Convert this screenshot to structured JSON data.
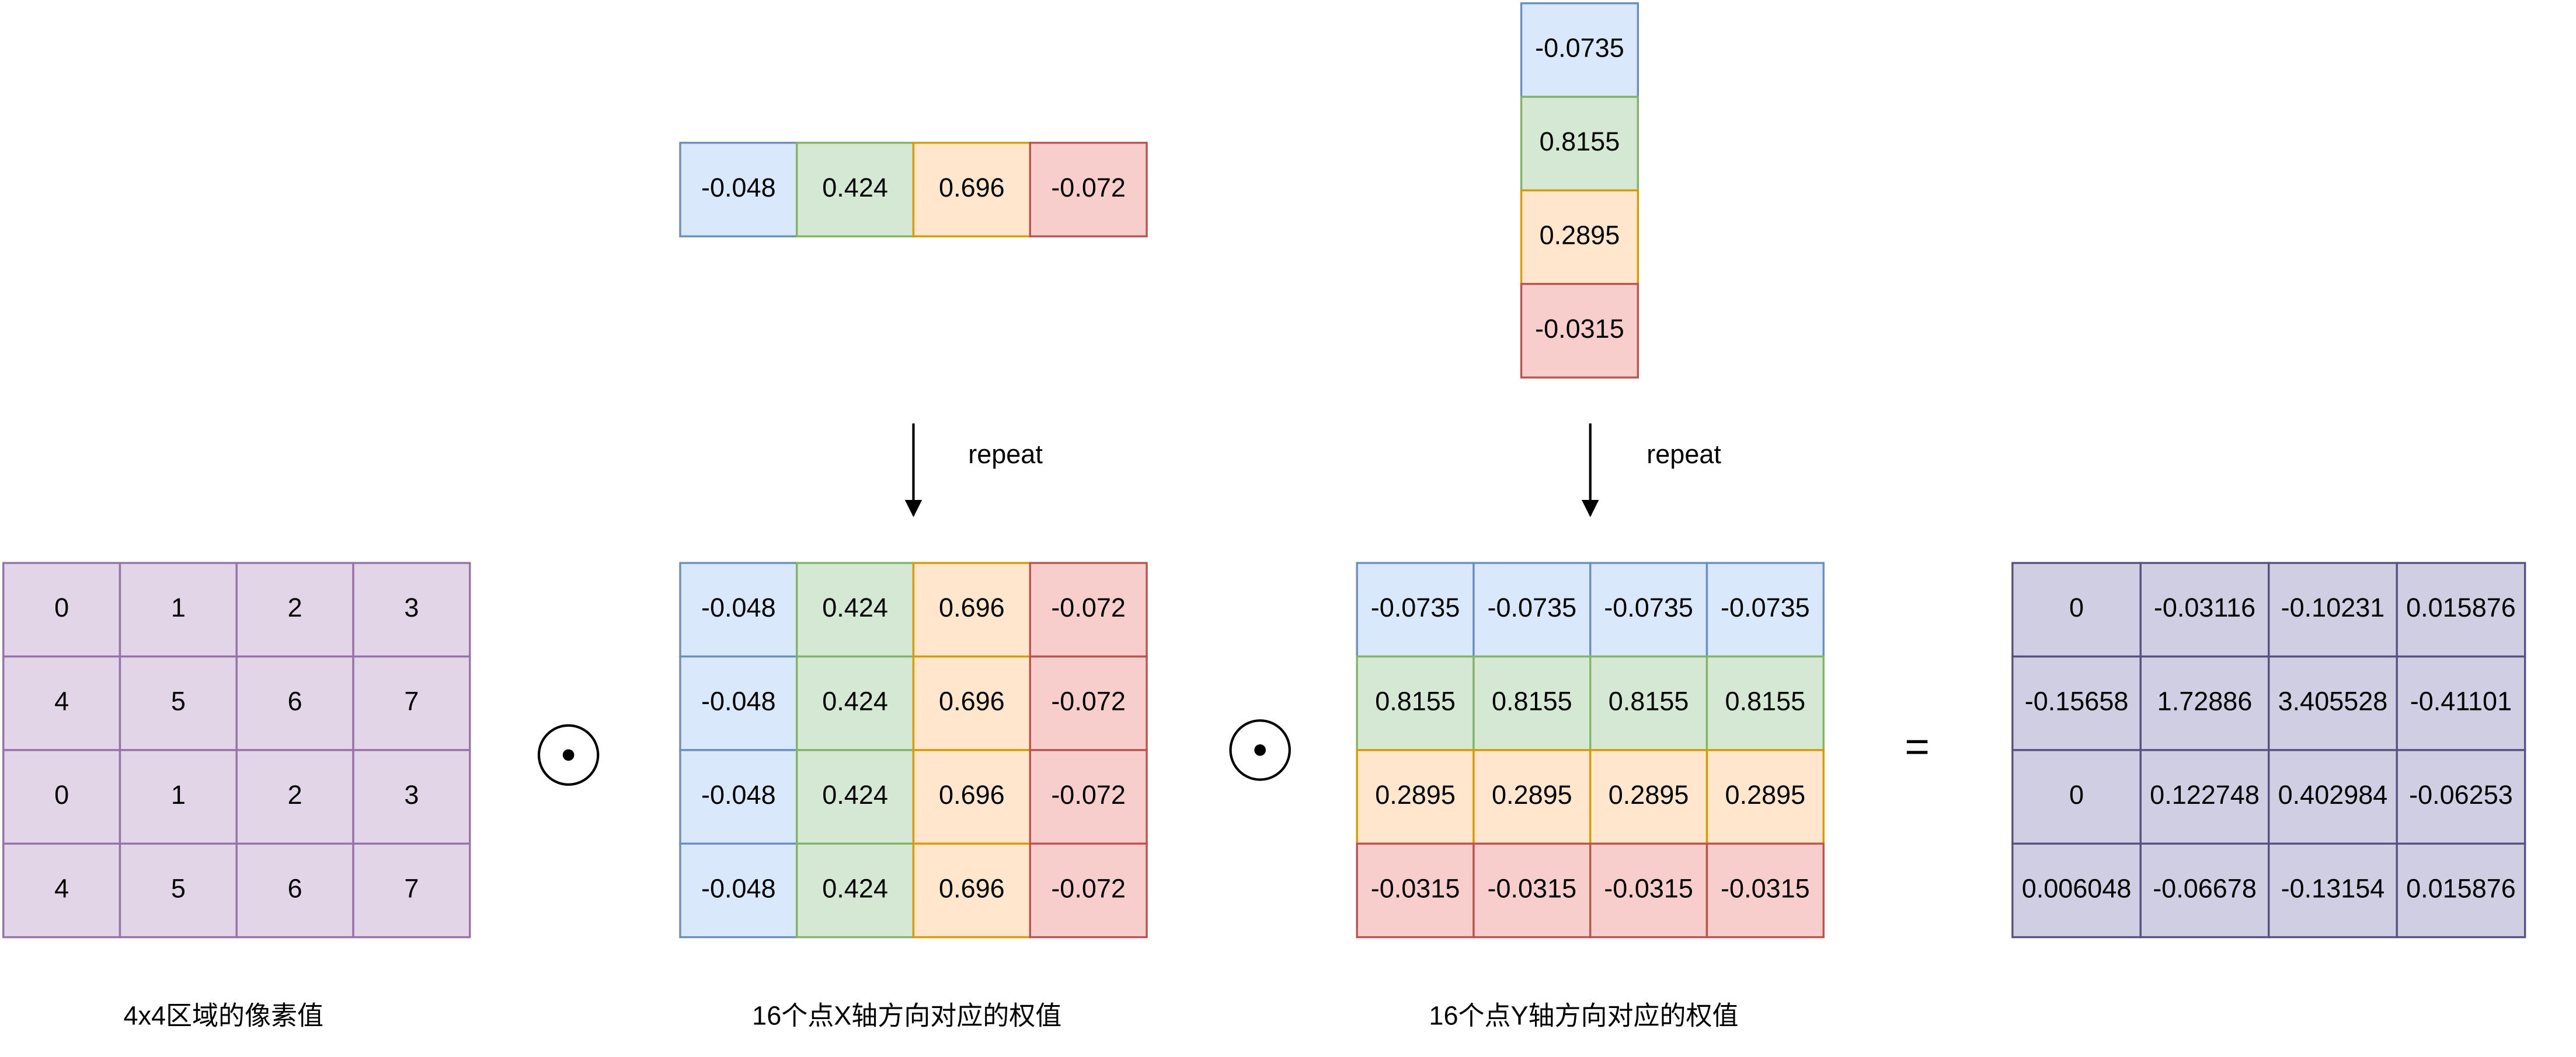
{
  "pixel_grid": {
    "rows": [
      [
        "0",
        "1",
        "2",
        "3"
      ],
      [
        "4",
        "5",
        "6",
        "7"
      ],
      [
        "0",
        "1",
        "2",
        "3"
      ],
      [
        "4",
        "5",
        "6",
        "7"
      ]
    ],
    "caption": "4x4区域的像素值"
  },
  "x_weights": {
    "vector": [
      "-0.048",
      "0.424",
      "0.696",
      "-0.072"
    ],
    "repeat_label": "repeat",
    "matrix": [
      [
        "-0.048",
        "0.424",
        "0.696",
        "-0.072"
      ],
      [
        "-0.048",
        "0.424",
        "0.696",
        "-0.072"
      ],
      [
        "-0.048",
        "0.424",
        "0.696",
        "-0.072"
      ],
      [
        "-0.048",
        "0.424",
        "0.696",
        "-0.072"
      ]
    ],
    "caption": "16个点X轴方向对应的权值"
  },
  "y_weights": {
    "vector": [
      "-0.0735",
      "0.8155",
      "0.2895",
      "-0.0315"
    ],
    "repeat_label": "repeat",
    "matrix": [
      [
        "-0.0735",
        "-0.0735",
        "-0.0735",
        "-0.0735"
      ],
      [
        "0.8155",
        "0.8155",
        "0.8155",
        "0.8155"
      ],
      [
        "0.2895",
        "0.2895",
        "0.2895",
        "0.2895"
      ],
      [
        "-0.0315",
        "-0.0315",
        "-0.0315",
        "-0.0315"
      ]
    ],
    "caption": "16个点Y轴方向对应的权值"
  },
  "equals_sign": "=",
  "result": {
    "rows": [
      [
        "0",
        "-0.03116",
        "-0.10231",
        "0.015876"
      ],
      [
        "-0.15658",
        "1.72886",
        "3.405528",
        "-0.41101"
      ],
      [
        "0",
        "0.122748",
        "0.402984",
        "-0.06253"
      ],
      [
        "0.006048",
        "-0.06678",
        "-0.13154",
        "0.015876"
      ]
    ]
  }
}
